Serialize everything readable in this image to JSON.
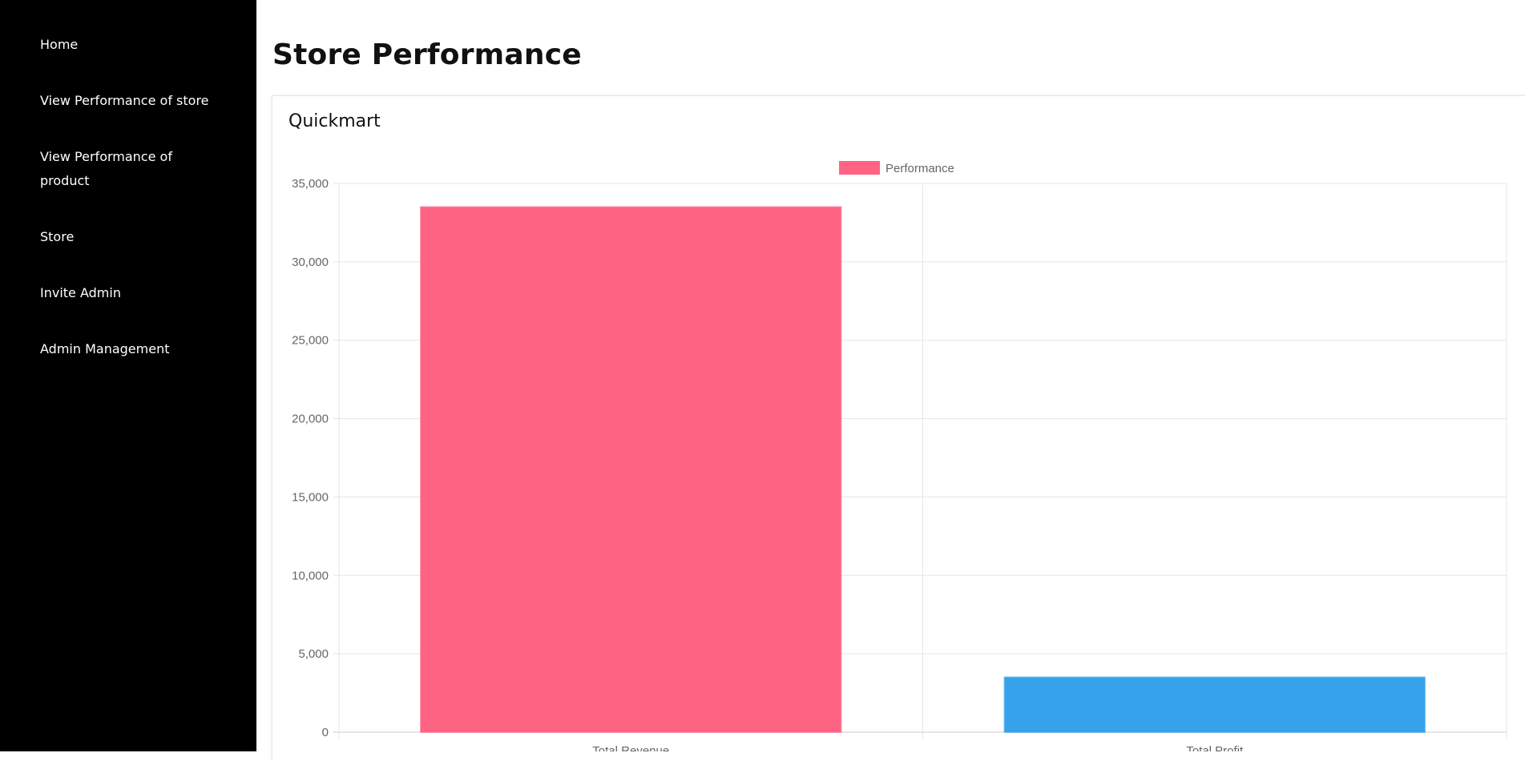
{
  "sidebar": {
    "items": [
      {
        "label": "Home"
      },
      {
        "label": "View Performance of store"
      },
      {
        "label": "View Performance of product"
      },
      {
        "label": "Store"
      },
      {
        "label": "Invite Admin"
      },
      {
        "label": "Admin Management"
      }
    ]
  },
  "page": {
    "title": "Store Performance",
    "store_name": "Quickmart"
  },
  "colors": {
    "sidebar_bg": "#000000",
    "revenue_bar": "#ff6384",
    "profit_bar": "#36a2eb",
    "grid": "#e5e5e5",
    "tick_text": "#666666"
  },
  "chart_data": {
    "type": "bar",
    "categories": [
      "Total Revenue",
      "Total Profit"
    ],
    "series": [
      {
        "name": "Performance",
        "values": [
          33500,
          3500
        ],
        "colors": [
          "#ff6384",
          "#36a2eb"
        ]
      }
    ],
    "ylim": [
      0,
      35000
    ],
    "yticks": [
      0,
      5000,
      10000,
      15000,
      20000,
      25000,
      30000,
      35000
    ],
    "ytick_labels": [
      "0",
      "5,000",
      "10,000",
      "15,000",
      "20,000",
      "25,000",
      "30,000",
      "35,000"
    ],
    "legend": "top-center",
    "grid": true
  }
}
